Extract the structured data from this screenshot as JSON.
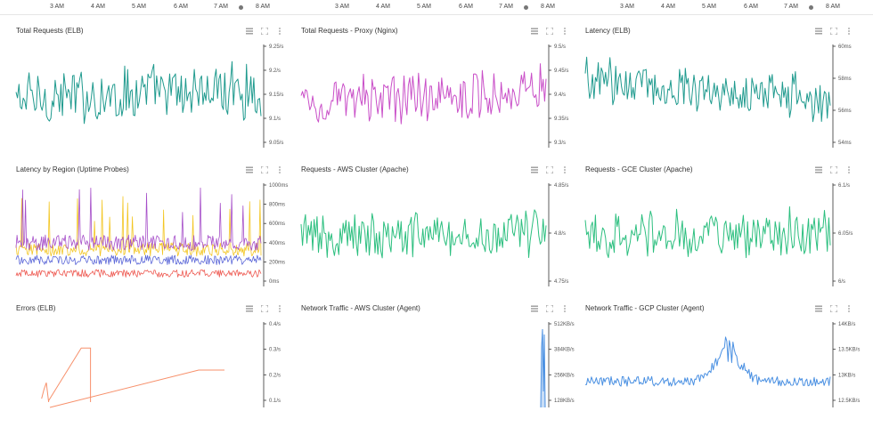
{
  "timebar": {
    "groups": [
      {
        "labels": [
          "3 AM",
          "4 AM",
          "5 AM",
          "6 AM",
          "7 AM",
          "8 AM"
        ]
      },
      {
        "labels": [
          "3 AM",
          "4 AM",
          "5 AM",
          "6 AM",
          "7 AM",
          "8 AM"
        ]
      },
      {
        "labels": [
          "3 AM",
          "4 AM",
          "5 AM",
          "6 AM",
          "7 AM",
          "8 AM"
        ]
      }
    ]
  },
  "colors": {
    "teal": "#1f9a8e",
    "magenta": "#c94fc8",
    "green": "#2cbf7f",
    "orange": "#f7906b",
    "blue": "#4a90e2",
    "purple": "#a64fc9",
    "yellow": "#f3c623",
    "red": "#ee5a52",
    "indigo": "#5b67d8"
  },
  "panels": [
    {
      "title": "Total Requests (ELB)",
      "ticks": [
        "9.25/s",
        "9.2/s",
        "9.15/s",
        "9.1/s",
        "9.05/s"
      ]
    },
    {
      "title": "Total Requests - Proxy (Nginx)",
      "ticks": [
        "9.5/s",
        "9.45/s",
        "9.4/s",
        "9.35/s",
        "9.3/s"
      ]
    },
    {
      "title": "Latency (ELB)",
      "ticks": [
        "60ms",
        "58ms",
        "56ms",
        "54ms"
      ]
    },
    {
      "title": "Latency by Region (Uptime Probes)",
      "ticks": [
        "1000ms",
        "800ms",
        "600ms",
        "400ms",
        "200ms",
        "0ms"
      ]
    },
    {
      "title": "Requests - AWS Cluster (Apache)",
      "ticks": [
        "4.85/s",
        "4.8/s",
        "4.75/s"
      ]
    },
    {
      "title": "Requests - GCE Cluster (Apache)",
      "ticks": [
        "6.1/s",
        "6.05/s",
        "6/s"
      ]
    },
    {
      "title": "Errors (ELB)",
      "ticks": [
        "0.4/s",
        "0.3/s",
        "0.2/s",
        "0.1/s"
      ]
    },
    {
      "title": "Network Traffic - AWS Cluster (Agent)",
      "ticks": [
        "512KB/s",
        "384KB/s",
        "256KB/s",
        "128KB/s"
      ]
    },
    {
      "title": "Network Traffic - GCP Cluster (Agent)",
      "ticks": [
        "14KB/s",
        "13.5KB/s",
        "13KB/s",
        "12.5KB/s"
      ]
    }
  ],
  "chart_data": [
    {
      "type": "line",
      "title": "Total Requests (ELB)",
      "ylim": [
        9.03,
        9.28
      ],
      "series": [
        {
          "color": "#1f9a8e",
          "level": 0.5,
          "amp": 0.38,
          "trend": 0.12
        }
      ]
    },
    {
      "type": "line",
      "title": "Total Requests - Proxy (Nginx)",
      "ylim": [
        9.28,
        9.52
      ],
      "series": [
        {
          "color": "#c94fc8",
          "level": 0.48,
          "amp": 0.32,
          "trend": 0.18
        }
      ]
    },
    {
      "type": "line",
      "title": "Latency (ELB)",
      "ylim": [
        53.5,
        61
      ],
      "series": [
        {
          "color": "#1f9a8e",
          "level": 0.55,
          "amp": 0.3,
          "trend": -0.22
        }
      ]
    },
    {
      "type": "line",
      "title": "Latency by Region (Uptime Probes)",
      "ylim": [
        0,
        1000
      ],
      "series": [
        {
          "color": "#f3c623",
          "level": 0.33,
          "amp": 0.07
        },
        {
          "color": "#a64fc9",
          "level": 0.4,
          "amp": 0.08
        },
        {
          "color": "#5b67d8",
          "level": 0.22,
          "amp": 0.05
        },
        {
          "color": "#ee5a52",
          "level": 0.08,
          "amp": 0.04
        }
      ]
    },
    {
      "type": "line",
      "title": "Requests - AWS Cluster (Apache)",
      "ylim": [
        4.745,
        4.86
      ],
      "series": [
        {
          "color": "#2cbf7f",
          "level": 0.48,
          "amp": 0.34,
          "trend": 0.08
        }
      ]
    },
    {
      "type": "line",
      "title": "Requests - GCE Cluster (Apache)",
      "ylim": [
        5.99,
        6.12
      ],
      "series": [
        {
          "color": "#2cbf7f",
          "level": 0.48,
          "amp": 0.32,
          "trend": 0.05
        }
      ]
    },
    {
      "type": "line",
      "title": "Errors (ELB)",
      "ylim": [
        0,
        0.45
      ],
      "series": [
        {
          "color": "#f7906b"
        }
      ]
    },
    {
      "type": "line",
      "title": "Network Traffic - AWS Cluster (Agent)",
      "ylim": [
        0,
        600
      ],
      "series": [
        {
          "color": "#4a90e2"
        }
      ]
    },
    {
      "type": "line",
      "title": "Network Traffic - GCP Cluster (Agent)",
      "ylim": [
        12.4,
        14.1
      ],
      "series": [
        {
          "color": "#4a90e2",
          "level": 0.3,
          "amp": 0.1
        }
      ]
    }
  ]
}
